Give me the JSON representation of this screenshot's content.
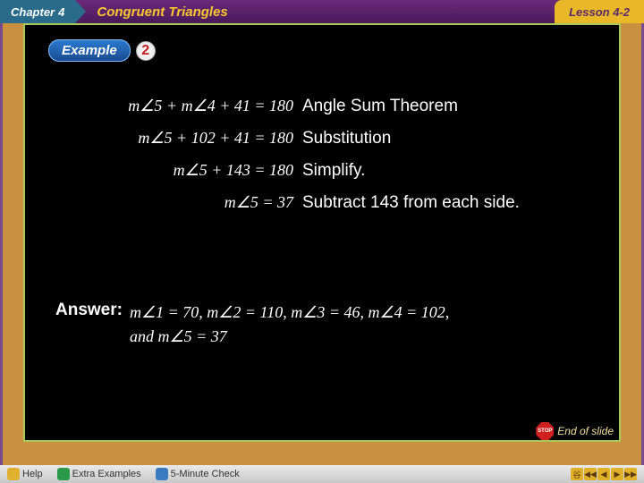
{
  "header": {
    "chapter_label": "Chapter",
    "chapter_number": "4",
    "subject": "Congruent Triangles",
    "lesson": "Lesson 4-2"
  },
  "example": {
    "label": "Example",
    "number": "2"
  },
  "steps": [
    {
      "equation": "m∠5 + m∠4 + 41 = 180",
      "reason": "Angle Sum Theorem"
    },
    {
      "equation": "m∠5 + 102 + 41 = 180",
      "reason": "Substitution"
    },
    {
      "equation": "m∠5 + 143 = 180",
      "reason": "Simplify."
    },
    {
      "equation": "m∠5 = 37",
      "reason": "Subtract 143 from each side."
    }
  ],
  "answer": {
    "label": "Answer:",
    "line1": "m∠1 = 70, m∠2 = 110, m∠3 = 46, m∠4 = 102,",
    "line2": "and m∠5 = 37"
  },
  "end_of_slide": "End of slide",
  "stop_text": "STOP",
  "bottom_bar": {
    "help": "Help",
    "extra": "Extra Examples",
    "check": "5-Minute Check"
  },
  "nav": {
    "home": "⾕",
    "first": "◀◀",
    "prev": "◀",
    "next": "▶",
    "last": "▶▶"
  },
  "colors": {
    "outer_border": "#7a4a8a",
    "gold_frame": "#c89040",
    "inner_border": "#a8c858",
    "bg": "#000000",
    "header_purple": "#4a1a5a",
    "header_gold": "#f8c830",
    "lesson_tab_bg": "#e8b828",
    "example_blue": "#1a4a90",
    "example_num_red": "#c02020",
    "text": "#ffffff",
    "bottom_bar_bg": "#d8d8d8",
    "nav_btn": "#e0b028"
  },
  "fonts": {
    "body": "Arial, sans-serif",
    "math": "Times New Roman, serif",
    "header_size": 15,
    "step_eq_size": 18,
    "step_reason_size": 19,
    "answer_size": 18
  }
}
